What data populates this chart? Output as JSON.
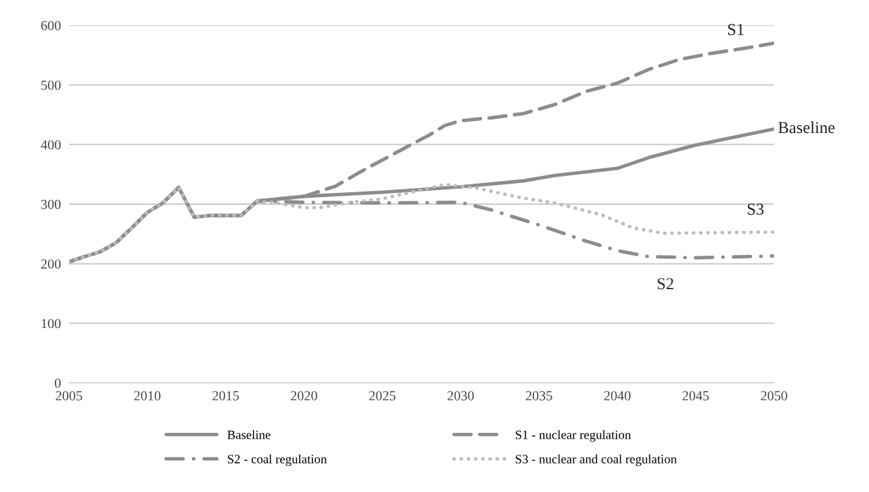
{
  "chart_data": {
    "type": "line",
    "xlim": [
      2005,
      2050
    ],
    "xticks": [
      2005,
      2010,
      2015,
      2020,
      2025,
      2030,
      2035,
      2040,
      2045,
      2050
    ],
    "ylim": [
      0,
      600
    ],
    "yticks": [
      0,
      100,
      200,
      300,
      400,
      500,
      600
    ],
    "grid": "y",
    "legend": "bottom",
    "marker": "none",
    "series": [
      {
        "name": "Baseline",
        "color": "#8c8c8e",
        "line_style": "solid",
        "x": [
          2005,
          2006,
          2007,
          2008,
          2009,
          2010,
          2011,
          2012,
          2013,
          2014,
          2015,
          2016,
          2017,
          2020,
          2025,
          2030,
          2034,
          2036,
          2040,
          2042,
          2045,
          2050
        ],
        "values": [
          203,
          212,
          220,
          235,
          260,
          286,
          302,
          328,
          278,
          281,
          281,
          281,
          305,
          313,
          320,
          329,
          339,
          348,
          360,
          378,
          399,
          426
        ]
      },
      {
        "name": "S1 - nuclear regulation",
        "color": "#8c8c8e",
        "line_style": "dashed",
        "x": [
          2005,
          2006,
          2007,
          2008,
          2009,
          2010,
          2011,
          2012,
          2013,
          2014,
          2015,
          2016,
          2017,
          2020,
          2022,
          2024,
          2026,
          2028,
          2029,
          2030,
          2032,
          2034,
          2036,
          2038,
          2040,
          2042,
          2044,
          2046,
          2048,
          2050
        ],
        "values": [
          203,
          212,
          220,
          235,
          260,
          286,
          302,
          328,
          278,
          281,
          281,
          281,
          305,
          313,
          330,
          360,
          388,
          416,
          432,
          440,
          445,
          452,
          467,
          489,
          503,
          526,
          543,
          553,
          561,
          570
        ]
      },
      {
        "name": "S2 - coal regulation",
        "color": "#8c8c8e",
        "line_style": "dashdot",
        "x": [
          2005,
          2006,
          2007,
          2008,
          2009,
          2010,
          2011,
          2012,
          2013,
          2014,
          2015,
          2016,
          2017,
          2020,
          2025,
          2030,
          2032,
          2035,
          2038,
          2040,
          2042,
          2045,
          2050
        ],
        "values": [
          203,
          212,
          220,
          235,
          260,
          286,
          302,
          328,
          278,
          281,
          281,
          281,
          305,
          303,
          302,
          303,
          290,
          265,
          238,
          222,
          212,
          210,
          213
        ]
      },
      {
        "name": "S3 - nuclear and coal regulation",
        "color": "#bcbcbe",
        "line_style": "dotted",
        "x": [
          2005,
          2006,
          2007,
          2008,
          2009,
          2010,
          2011,
          2012,
          2013,
          2014,
          2015,
          2016,
          2017,
          2018,
          2020,
          2021,
          2023,
          2025,
          2027,
          2029,
          2031,
          2034,
          2036,
          2039,
          2041,
          2043,
          2046,
          2050
        ],
        "values": [
          203,
          212,
          220,
          235,
          260,
          286,
          302,
          328,
          278,
          281,
          281,
          281,
          305,
          303,
          294,
          294,
          303,
          309,
          321,
          333,
          327,
          310,
          302,
          282,
          260,
          251,
          252,
          253
        ]
      }
    ],
    "annotations": [
      {
        "text": "S1",
        "x": 2048,
        "y": 561
      },
      {
        "text": "Baseline",
        "x": 2050,
        "y": 426
      },
      {
        "text": "S3",
        "x": 2050,
        "y": 253
      },
      {
        "text": "S2",
        "x": 2045,
        "y": 210
      }
    ]
  }
}
